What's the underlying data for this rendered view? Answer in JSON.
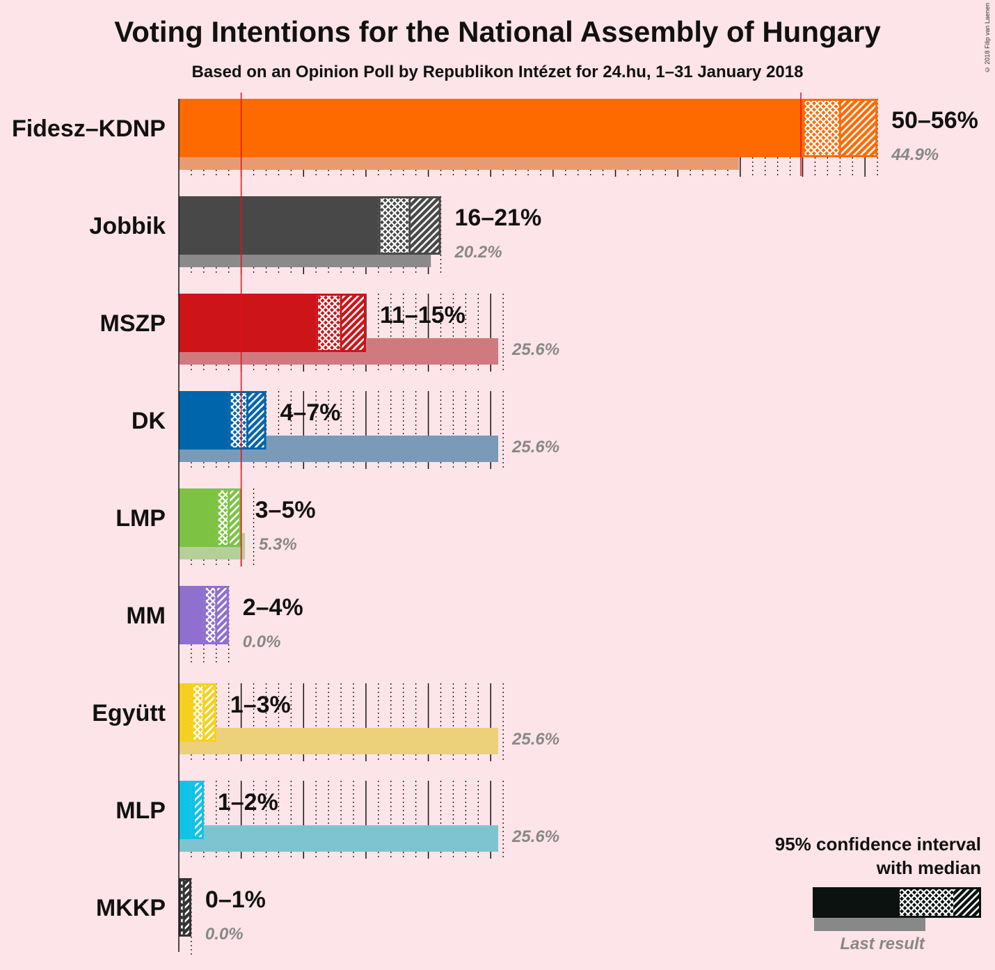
{
  "title": "Voting Intentions for the National Assembly of Hungary",
  "subtitle": "Based on an Opinion Poll by Republikon Intézet for 24.hu, 1–31 January 2018",
  "copyright": "© 2018 Filip van Laenen",
  "chart_data": {
    "type": "bar",
    "orientation": "horizontal",
    "x_unit": "%",
    "threshold": 5,
    "categories": [
      "Fidesz–KDNP",
      "Jobbik",
      "MSZP",
      "DK",
      "LMP",
      "MM",
      "Együtt",
      "MLP",
      "MKKP"
    ],
    "series": [
      {
        "name": "95% confidence interval with median",
        "low": [
          50,
          16,
          11,
          4,
          3,
          2,
          1,
          1,
          0
        ],
        "median": [
          53,
          18.5,
          13,
          5.5,
          4,
          3,
          2,
          1.2,
          0.4
        ],
        "high": [
          56,
          21,
          15,
          7,
          5,
          4,
          3,
          2,
          1
        ],
        "range_labels": [
          "50–56%",
          "16–21%",
          "11–15%",
          "4–7%",
          "3–5%",
          "2–4%",
          "1–3%",
          "1–2%",
          "0–1%"
        ]
      },
      {
        "name": "Last result",
        "values": [
          44.9,
          20.2,
          25.6,
          25.6,
          5.3,
          0.0,
          25.6,
          25.6,
          0.0
        ],
        "labels": [
          "44.9%",
          "20.2%",
          "25.6%",
          "25.6%",
          "5.3%",
          "0.0%",
          "25.6%",
          "25.6%",
          "0.0%"
        ]
      }
    ],
    "colors": [
      "#ff6a00",
      "#484848",
      "#cc1419",
      "#0065ab",
      "#7dc242",
      "#8f6fcf",
      "#f5d020",
      "#10c3e6",
      "#333333"
    ],
    "last_colors": [
      "#e89b70",
      "#8a8a8a",
      "#d07a80",
      "#7a9ab8",
      "#b5cf9a",
      "#b8a8d8",
      "#ecd07a",
      "#7ec4d0",
      "#777777"
    ]
  },
  "legend": {
    "line1": "95% confidence interval",
    "line2": "with median",
    "last_result": "Last result"
  }
}
